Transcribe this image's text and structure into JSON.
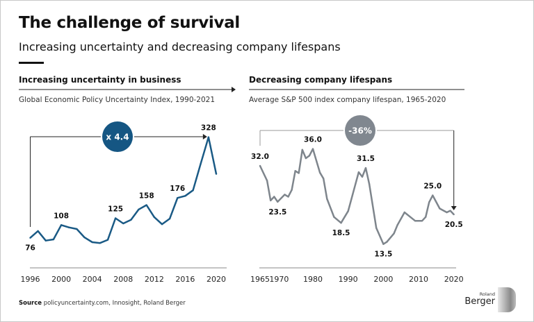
{
  "header": {
    "title": "The challenge of survival",
    "subtitle": "Increasing uncertainty and decreasing company lifespans"
  },
  "panels": {
    "left": {
      "title": "Increasing uncertainty in business",
      "subtitle": "Global Economic Policy Uncertainty Index, 1990-2021"
    },
    "right": {
      "title": "Decreasing company lifespans",
      "subtitle": "Average S&P 500 index company lifespan, 1965-2020"
    }
  },
  "source": {
    "label": "Source",
    "text": "policyuncertainty.com, Innosight, Roland Berger"
  },
  "logo": {
    "small": "Roland",
    "large": "Berger"
  },
  "colors": {
    "left_series": "#1a5a85",
    "right_series": "#7e858c",
    "left_badge": "#155683",
    "right_badge": "#80878f",
    "axis": "#8a8a8a",
    "arrow": "#222222"
  },
  "chart_data": [
    {
      "type": "line",
      "title": "Increasing uncertainty in business",
      "subtitle": "Global Economic Policy Uncertainty Index, 1990-2021",
      "xlabel": "",
      "ylabel": "",
      "x_ticks": [
        "1996",
        "2000",
        "2004",
        "2008",
        "2012",
        "2016",
        "2020"
      ],
      "xlim": [
        1996,
        2020
      ],
      "ylim": [
        50,
        340
      ],
      "grid": false,
      "series": [
        {
          "name": "Global Economic Policy Uncertainty Index",
          "x": [
            1996,
            1997,
            1998,
            1999,
            2000,
            2001,
            2002,
            2003,
            2004,
            2005,
            2006,
            2007,
            2008,
            2009,
            2010,
            2011,
            2012,
            2013,
            2014,
            2015,
            2016,
            2017,
            2018,
            2019,
            2020
          ],
          "values": [
            76,
            93,
            69,
            72,
            108,
            102,
            98,
            77,
            65,
            63,
            71,
            125,
            112,
            121,
            147,
            158,
            128,
            110,
            124,
            176,
            181,
            195,
            262,
            328,
            236
          ]
        }
      ],
      "data_labels": [
        {
          "x": 1996,
          "text": "76",
          "pos": "below"
        },
        {
          "x": 2000,
          "text": "108",
          "pos": "above"
        },
        {
          "x": 2007,
          "text": "125",
          "pos": "above"
        },
        {
          "x": 2011,
          "text": "158",
          "pos": "above"
        },
        {
          "x": 2015,
          "text": "176",
          "pos": "above"
        },
        {
          "x": 2019,
          "text": "328",
          "pos": "above"
        }
      ],
      "annotation": {
        "text": "x 4.4",
        "from_x": 1996,
        "to_x": 2019
      }
    },
    {
      "type": "line",
      "title": "Decreasing company lifespans",
      "subtitle": "Average S&P 500 index company lifespan, 1965-2020",
      "xlabel": "",
      "ylabel": "",
      "x_ticks": [
        "1965",
        "1970",
        "1980",
        "1990",
        "2000",
        "2010",
        "2020"
      ],
      "xlim": [
        1965,
        2020
      ],
      "ylim": [
        10,
        38
      ],
      "grid": false,
      "series": [
        {
          "name": "Average S&P 500 company lifespan (years)",
          "x": [
            1965,
            1967,
            1968,
            1969,
            1970,
            1972,
            1973,
            1974,
            1975,
            1976,
            1977,
            1978,
            1979,
            1980,
            1982,
            1983,
            1984,
            1986,
            1988,
            1990,
            1993,
            1994,
            1995,
            1996,
            1998,
            2000,
            2001,
            2003,
            2004,
            2006,
            2009,
            2011,
            2012,
            2013,
            2014,
            2016,
            2018,
            2019,
            2020
          ],
          "values": [
            32.0,
            28.5,
            23.8,
            24.7,
            23.5,
            25.2,
            24.7,
            26.3,
            30.8,
            30.3,
            35.8,
            33.8,
            34.4,
            36.0,
            30.4,
            29.0,
            24.2,
            19.9,
            18.5,
            21.3,
            30.5,
            29.4,
            31.5,
            27.7,
            17.3,
            13.5,
            14.0,
            16.0,
            18.0,
            21.0,
            19.0,
            19.0,
            19.9,
            23.4,
            25.0,
            21.9,
            21.0,
            21.4,
            20.5
          ]
        }
      ],
      "data_labels": [
        {
          "x": 1965,
          "text": "32.0",
          "pos": "above"
        },
        {
          "x": 1970,
          "text": "23.5",
          "pos": "below"
        },
        {
          "x": 1980,
          "text": "36.0",
          "pos": "above"
        },
        {
          "x": 1988,
          "text": "18.5",
          "pos": "below"
        },
        {
          "x": 1995,
          "text": "31.5",
          "pos": "above"
        },
        {
          "x": 2000,
          "text": "13.5",
          "pos": "below"
        },
        {
          "x": 2014,
          "text": "25.0",
          "pos": "above"
        },
        {
          "x": 2020,
          "text": "20.5",
          "pos": "below"
        }
      ],
      "annotation": {
        "text": "-36%",
        "from_x": 1965,
        "to_x": 2020
      }
    }
  ]
}
